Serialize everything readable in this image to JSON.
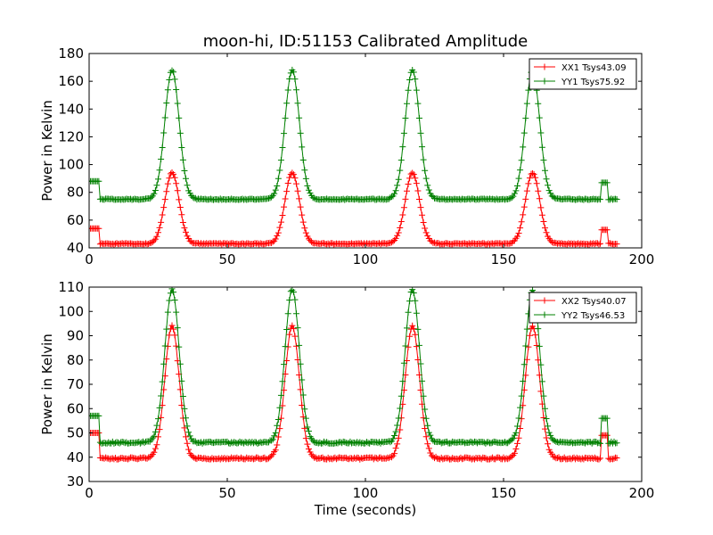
{
  "chart_data": [
    {
      "type": "line",
      "title": "moon-hi, ID:51153 Calibrated Amplitude",
      "xlabel": "",
      "ylabel": "Power in Kelvin",
      "xlim": [
        0,
        200
      ],
      "ylim": [
        40,
        180
      ],
      "xticks": [
        "0",
        "50",
        "100",
        "150",
        "200"
      ],
      "yticks": [
        "40",
        "60",
        "80",
        "100",
        "120",
        "140",
        "160",
        "180"
      ],
      "grid": false,
      "legend_position": "top-right",
      "marker": "+",
      "series": [
        {
          "name": "XX1 Tsys43.09",
          "color": "#ff0000",
          "base": 43,
          "pre_level": 54,
          "pre_end": 4,
          "spike_level": 53,
          "peaks": [
            {
              "x": 30,
              "y": 94
            },
            {
              "x": 73.5,
              "y": 94
            },
            {
              "x": 117,
              "y": 94
            },
            {
              "x": 160.5,
              "y": 94
            }
          ]
        },
        {
          "name": "YY1 Tsys75.92",
          "color": "#008000",
          "base": 75,
          "pre_level": 88,
          "pre_end": 4,
          "spike_level": 87,
          "peaks": [
            {
              "x": 30,
              "y": 168
            },
            {
              "x": 73.5,
              "y": 168
            },
            {
              "x": 117,
              "y": 168
            },
            {
              "x": 160.5,
              "y": 168
            }
          ]
        }
      ]
    },
    {
      "type": "line",
      "title": "",
      "xlabel": "Time (seconds)",
      "ylabel": "Power in Kelvin",
      "xlim": [
        0,
        200
      ],
      "ylim": [
        30,
        110
      ],
      "xticks": [
        "0",
        "50",
        "100",
        "150",
        "200"
      ],
      "yticks": [
        "30",
        "40",
        "50",
        "60",
        "70",
        "80",
        "90",
        "100",
        "110"
      ],
      "grid": false,
      "legend_position": "top-right",
      "marker": "+",
      "series": [
        {
          "name": "XX2 Tsys40.07",
          "color": "#ff0000",
          "base": 39.5,
          "pre_level": 50,
          "pre_end": 4,
          "spike_level": 49,
          "peaks": [
            {
              "x": 30,
              "y": 94
            },
            {
              "x": 73.5,
              "y": 94
            },
            {
              "x": 117,
              "y": 94
            },
            {
              "x": 160.5,
              "y": 94
            }
          ]
        },
        {
          "name": "YY2 Tsys46.53",
          "color": "#008000",
          "base": 46,
          "pre_level": 57,
          "pre_end": 4,
          "spike_level": 56,
          "peaks": [
            {
              "x": 30,
              "y": 109
            },
            {
              "x": 73.5,
              "y": 109
            },
            {
              "x": 117,
              "y": 109
            },
            {
              "x": 160.5,
              "y": 109
            }
          ]
        }
      ]
    }
  ]
}
